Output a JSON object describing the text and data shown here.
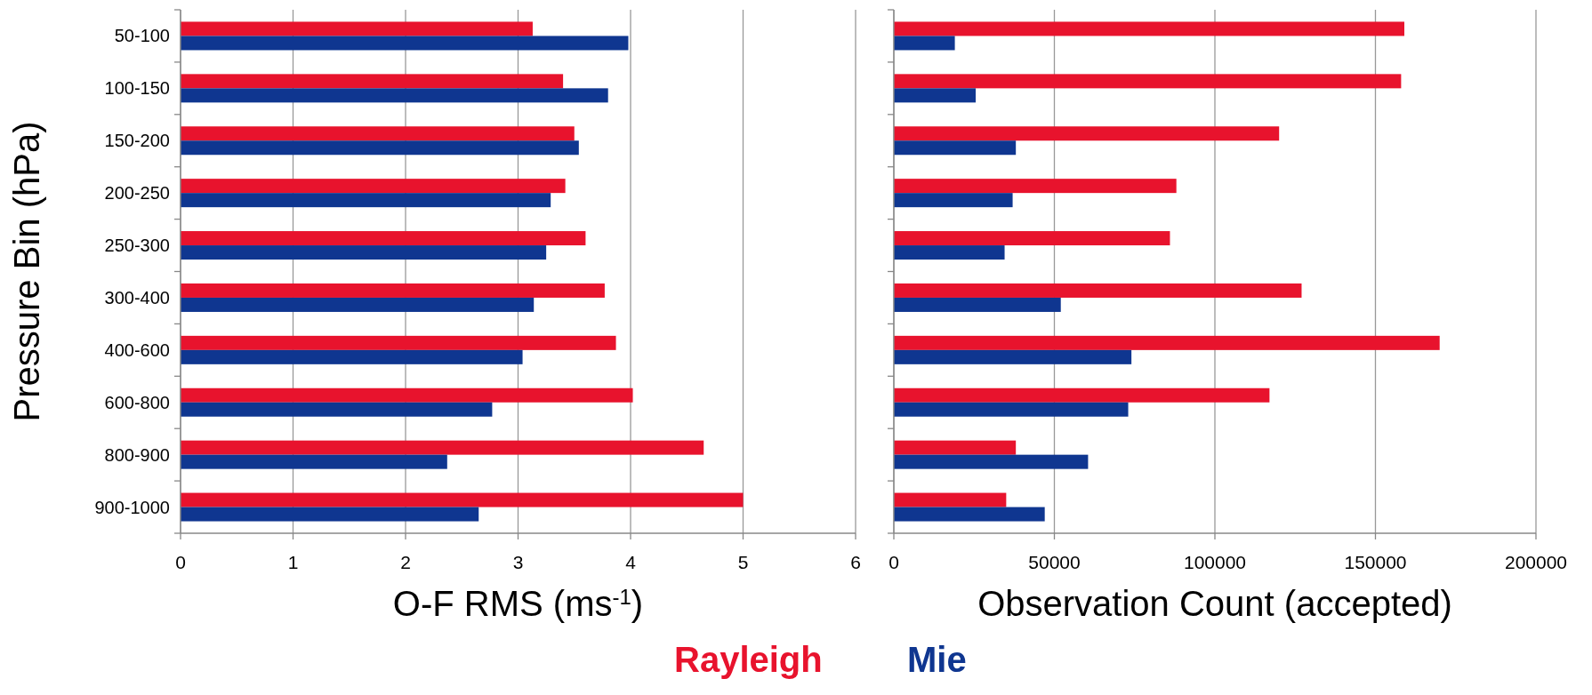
{
  "chart_data": [
    {
      "type": "bar",
      "orientation": "horizontal",
      "ylabel": "Pressure Bin (hPa)",
      "xlabel": "O-F RMS (ms$^{-1}$)",
      "categories": [
        "50-100",
        "100-150",
        "150-200",
        "200-250",
        "250-300",
        "300-400",
        "400-600",
        "600-800",
        "800-900",
        "900-1000"
      ],
      "series": [
        {
          "name": "Rayleigh",
          "color": "#e8132d",
          "values": [
            3.13,
            3.4,
            3.5,
            3.42,
            3.6,
            3.77,
            3.87,
            4.02,
            4.65,
            5.0
          ]
        },
        {
          "name": "Mie",
          "color": "#0f3690",
          "values": [
            3.98,
            3.8,
            3.54,
            3.29,
            3.25,
            3.14,
            3.04,
            2.77,
            2.37,
            2.65
          ]
        }
      ],
      "xlim": [
        0,
        6
      ],
      "xticks": [
        0,
        1,
        2,
        3,
        4,
        5,
        6
      ],
      "grid": "x",
      "legend": "bottom"
    },
    {
      "type": "bar",
      "orientation": "horizontal",
      "xlabel": "Observation Count (accepted)",
      "categories": [
        null,
        null,
        null,
        null,
        null,
        null,
        null,
        null,
        null,
        null
      ],
      "series": [
        {
          "color": "#e8132d",
          "values": [
            159000,
            158000,
            120000,
            88000,
            86000,
            127000,
            170000,
            117000,
            38000,
            35000
          ]
        },
        {
          "color": "#0f3690",
          "values": [
            19000,
            25500,
            38000,
            37000,
            34500,
            52000,
            74000,
            73000,
            60500,
            47000
          ]
        }
      ],
      "xlim": [
        0,
        200000
      ],
      "xticks": [
        0,
        50000,
        100000,
        150000,
        200000
      ],
      "grid": "x",
      "tick_labels": "x"
    }
  ]
}
